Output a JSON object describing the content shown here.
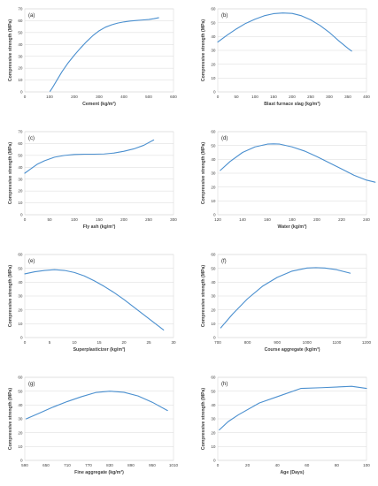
{
  "chart_data": [
    {
      "type": "line",
      "panel_label": "(a)",
      "xlabel": "Cement (kg/m³)",
      "ylabel": "Compressive strength (MPa)",
      "xlim": [
        0,
        600
      ],
      "xticks": [
        0,
        100,
        200,
        300,
        400,
        500,
        600
      ],
      "ylim": [
        0,
        70
      ],
      "yticks": [
        0,
        10,
        20,
        30,
        40,
        50,
        60,
        70
      ],
      "grid": "horizontal",
      "x": [
        102,
        110,
        130,
        150,
        175,
        200,
        225,
        250,
        275,
        300,
        325,
        350,
        375,
        400,
        425,
        450,
        475,
        500,
        520,
        540
      ],
      "y": [
        0.5,
        3,
        10,
        17,
        24.5,
        31,
        37,
        42.5,
        47.5,
        51.5,
        54.5,
        56.5,
        58,
        59,
        59.7,
        60.2,
        60.6,
        61,
        61.7,
        62.5
      ]
    },
    {
      "type": "line",
      "panel_label": "(b)",
      "xlabel": "Blast furnace slag (kg/m³)",
      "ylabel": "Compressive strength (MPa)",
      "xlim": [
        0,
        400
      ],
      "xticks": [
        0,
        50,
        100,
        150,
        200,
        250,
        300,
        350,
        400
      ],
      "ylim": [
        0,
        60
      ],
      "yticks": [
        0,
        10,
        20,
        30,
        40,
        50,
        60
      ],
      "grid": "horizontal",
      "x": [
        0,
        25,
        50,
        75,
        100,
        125,
        150,
        175,
        200,
        225,
        250,
        275,
        300,
        325,
        350,
        360
      ],
      "y": [
        36,
        41,
        45.5,
        49.5,
        52.5,
        55,
        56.5,
        57,
        56.7,
        55,
        52,
        48,
        43,
        37,
        31.5,
        29.5
      ]
    },
    {
      "type": "line",
      "panel_label": "(c)",
      "xlabel": "Fly ash (kg/m³)",
      "ylabel": "Compressive strength (MPa)",
      "xlim": [
        0,
        300
      ],
      "xticks": [
        0,
        50,
        100,
        150,
        200,
        250,
        300
      ],
      "ylim": [
        0,
        70
      ],
      "yticks": [
        0,
        10,
        20,
        30,
        40,
        50,
        60,
        70
      ],
      "grid": "horizontal",
      "x": [
        0,
        10,
        25,
        40,
        60,
        80,
        100,
        120,
        140,
        160,
        180,
        200,
        220,
        240,
        260
      ],
      "y": [
        35,
        38,
        42.5,
        45.5,
        48.5,
        50,
        50.8,
        51,
        51,
        51.2,
        52,
        53.5,
        55.5,
        58.5,
        63
      ]
    },
    {
      "type": "line",
      "panel_label": "(d)",
      "xlabel": "Water (kg/m³)",
      "ylabel": "Compressive strength (MPa)",
      "xlim": [
        120,
        240
      ],
      "xticks": [
        120,
        140,
        160,
        180,
        200,
        220,
        240
      ],
      "ylim": [
        0,
        60
      ],
      "yticks": [
        0,
        10,
        20,
        30,
        40,
        50,
        60
      ],
      "grid": "horizontal",
      "x": [
        122,
        130,
        140,
        150,
        160,
        165,
        170,
        180,
        190,
        200,
        210,
        220,
        230,
        240,
        247
      ],
      "y": [
        32,
        38.5,
        45,
        49,
        51,
        51.2,
        51,
        49,
        46,
        42,
        37.5,
        33,
        28.5,
        25,
        23.5
      ]
    },
    {
      "type": "line",
      "panel_label": "(e)",
      "xlabel": "Superplasticizer (kg/m³)",
      "ylabel": "Compressive strength (MPa)",
      "xlim": [
        0,
        30
      ],
      "xticks": [
        0,
        5,
        10,
        15,
        20,
        25,
        30
      ],
      "ylim": [
        0,
        60
      ],
      "yticks": [
        0,
        10,
        20,
        30,
        40,
        50,
        60
      ],
      "grid": "horizontal",
      "x": [
        0,
        2,
        4,
        6,
        8,
        10,
        12,
        14,
        16,
        18,
        20,
        22,
        24,
        26,
        28
      ],
      "y": [
        46,
        47.5,
        48.5,
        49,
        48.5,
        47,
        44.5,
        41,
        37,
        32.5,
        27.5,
        22,
        16.5,
        11,
        5.5
      ]
    },
    {
      "type": "line",
      "panel_label": "(f)",
      "xlabel": "Course aggregate (kg/m³)",
      "ylabel": "Compressive strength (MPa)",
      "xlim": [
        700,
        1200
      ],
      "xticks": [
        700,
        800,
        900,
        1000,
        1100,
        1200
      ],
      "ylim": [
        0,
        60
      ],
      "yticks": [
        0,
        10,
        20,
        30,
        40,
        50,
        60
      ],
      "grid": "horizontal",
      "x": [
        710,
        750,
        800,
        850,
        900,
        950,
        1000,
        1030,
        1060,
        1100,
        1145
      ],
      "y": [
        7,
        17,
        28,
        37,
        43.5,
        48,
        50.2,
        50.5,
        50.2,
        49,
        46.5
      ]
    },
    {
      "type": "line",
      "panel_label": "(g)",
      "xlabel": "Fine aggregate (kg/m³)",
      "ylabel": "Compressive strength (MPa)",
      "xlim": [
        590,
        1010
      ],
      "xticks": [
        590,
        650,
        710,
        770,
        830,
        890,
        950,
        1010
      ],
      "ylim": [
        0,
        60
      ],
      "yticks": [
        0,
        10,
        20,
        30,
        40,
        50,
        60
      ],
      "grid": "horizontal",
      "x": [
        594,
        630,
        670,
        710,
        750,
        790,
        830,
        870,
        910,
        950,
        993
      ],
      "y": [
        30,
        34,
        38.5,
        42.5,
        46,
        49,
        50,
        49.2,
        46.5,
        42,
        36
      ]
    },
    {
      "type": "line",
      "panel_label": "(h)",
      "xlabel": "Age (Days)",
      "ylabel": "Compressive strength (MPa)",
      "xlim": [
        0,
        100
      ],
      "xticks": [
        0,
        20,
        40,
        60,
        80,
        100
      ],
      "ylim": [
        0,
        60
      ],
      "yticks": [
        0,
        10,
        20,
        30,
        40,
        50,
        60
      ],
      "grid": "horizontal",
      "x": [
        1,
        7,
        14,
        28,
        40,
        56,
        70,
        90,
        100
      ],
      "y": [
        22,
        28,
        33,
        41.5,
        46,
        52,
        52.5,
        53.5,
        52
      ]
    }
  ]
}
